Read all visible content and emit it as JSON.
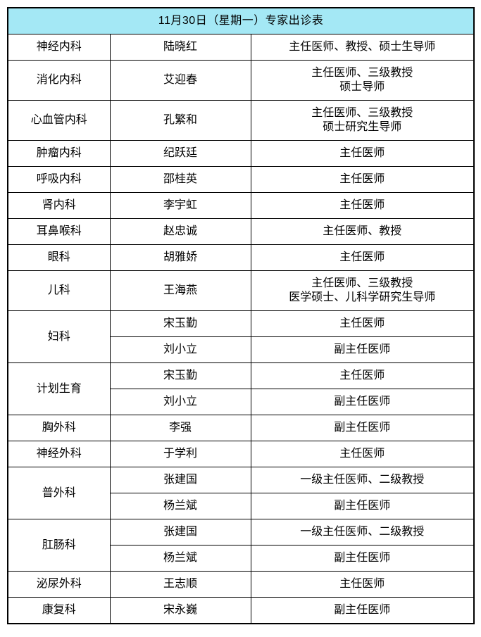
{
  "title": "11月30日（星期一）专家出诊表",
  "colors": {
    "title_bg": "#a4e8f5",
    "border": "#000000",
    "text": "#000000",
    "page_bg": "#ffffff"
  },
  "departments": [
    {
      "dept": "神经内科",
      "doctors": [
        {
          "name": "陆晓红",
          "titles": [
            "主任医师、教授、硕士生导师"
          ]
        }
      ]
    },
    {
      "dept": "消化内科",
      "doctors": [
        {
          "name": "艾迎春",
          "titles": [
            "主任医师、三级教授",
            "硕士导师"
          ]
        }
      ]
    },
    {
      "dept": "心血管内科",
      "doctors": [
        {
          "name": "孔繁和",
          "titles": [
            "主任医师、三级教授",
            "硕士研究生导师"
          ]
        }
      ]
    },
    {
      "dept": "肿瘤内科",
      "doctors": [
        {
          "name": "纪跃廷",
          "titles": [
            "主任医师"
          ]
        }
      ]
    },
    {
      "dept": "呼吸内科",
      "doctors": [
        {
          "name": "邵桂英",
          "titles": [
            "主任医师"
          ]
        }
      ]
    },
    {
      "dept": "肾内科",
      "doctors": [
        {
          "name": "李宇虹",
          "titles": [
            "主任医师"
          ]
        }
      ]
    },
    {
      "dept": "耳鼻喉科",
      "doctors": [
        {
          "name": "赵忠诚",
          "titles": [
            "主任医师、教授"
          ]
        }
      ]
    },
    {
      "dept": "眼科",
      "doctors": [
        {
          "name": "胡雅娇",
          "titles": [
            "主任医师"
          ]
        }
      ]
    },
    {
      "dept": "儿科",
      "doctors": [
        {
          "name": "王海燕",
          "titles": [
            "主任医师、三级教授",
            "医学硕士、儿科学研究生导师"
          ]
        }
      ]
    },
    {
      "dept": "妇科",
      "doctors": [
        {
          "name": "宋玉勤",
          "titles": [
            "主任医师"
          ]
        },
        {
          "name": "刘小立",
          "titles": [
            "副主任医师"
          ]
        }
      ]
    },
    {
      "dept": "计划生育",
      "doctors": [
        {
          "name": "宋玉勤",
          "titles": [
            "主任医师"
          ]
        },
        {
          "name": "刘小立",
          "titles": [
            "副主任医师"
          ]
        }
      ]
    },
    {
      "dept": "胸外科",
      "doctors": [
        {
          "name": "李强",
          "titles": [
            "副主任医师"
          ]
        }
      ]
    },
    {
      "dept": "神经外科",
      "doctors": [
        {
          "name": "于学利",
          "titles": [
            "主任医师"
          ]
        }
      ]
    },
    {
      "dept": "普外科",
      "doctors": [
        {
          "name": "张建国",
          "titles": [
            "一级主任医师、二级教授"
          ]
        },
        {
          "name": "杨兰斌",
          "titles": [
            "副主任医师"
          ]
        }
      ]
    },
    {
      "dept": "肛肠科",
      "doctors": [
        {
          "name": "张建国",
          "titles": [
            "一级主任医师、二级教授"
          ]
        },
        {
          "name": "杨兰斌",
          "titles": [
            "副主任医师"
          ]
        }
      ]
    },
    {
      "dept": "泌尿外科",
      "doctors": [
        {
          "name": "王志顺",
          "titles": [
            "主任医师"
          ]
        }
      ]
    },
    {
      "dept": "康复科",
      "doctors": [
        {
          "name": "宋永巍",
          "titles": [
            "副主任医师"
          ]
        }
      ]
    }
  ]
}
